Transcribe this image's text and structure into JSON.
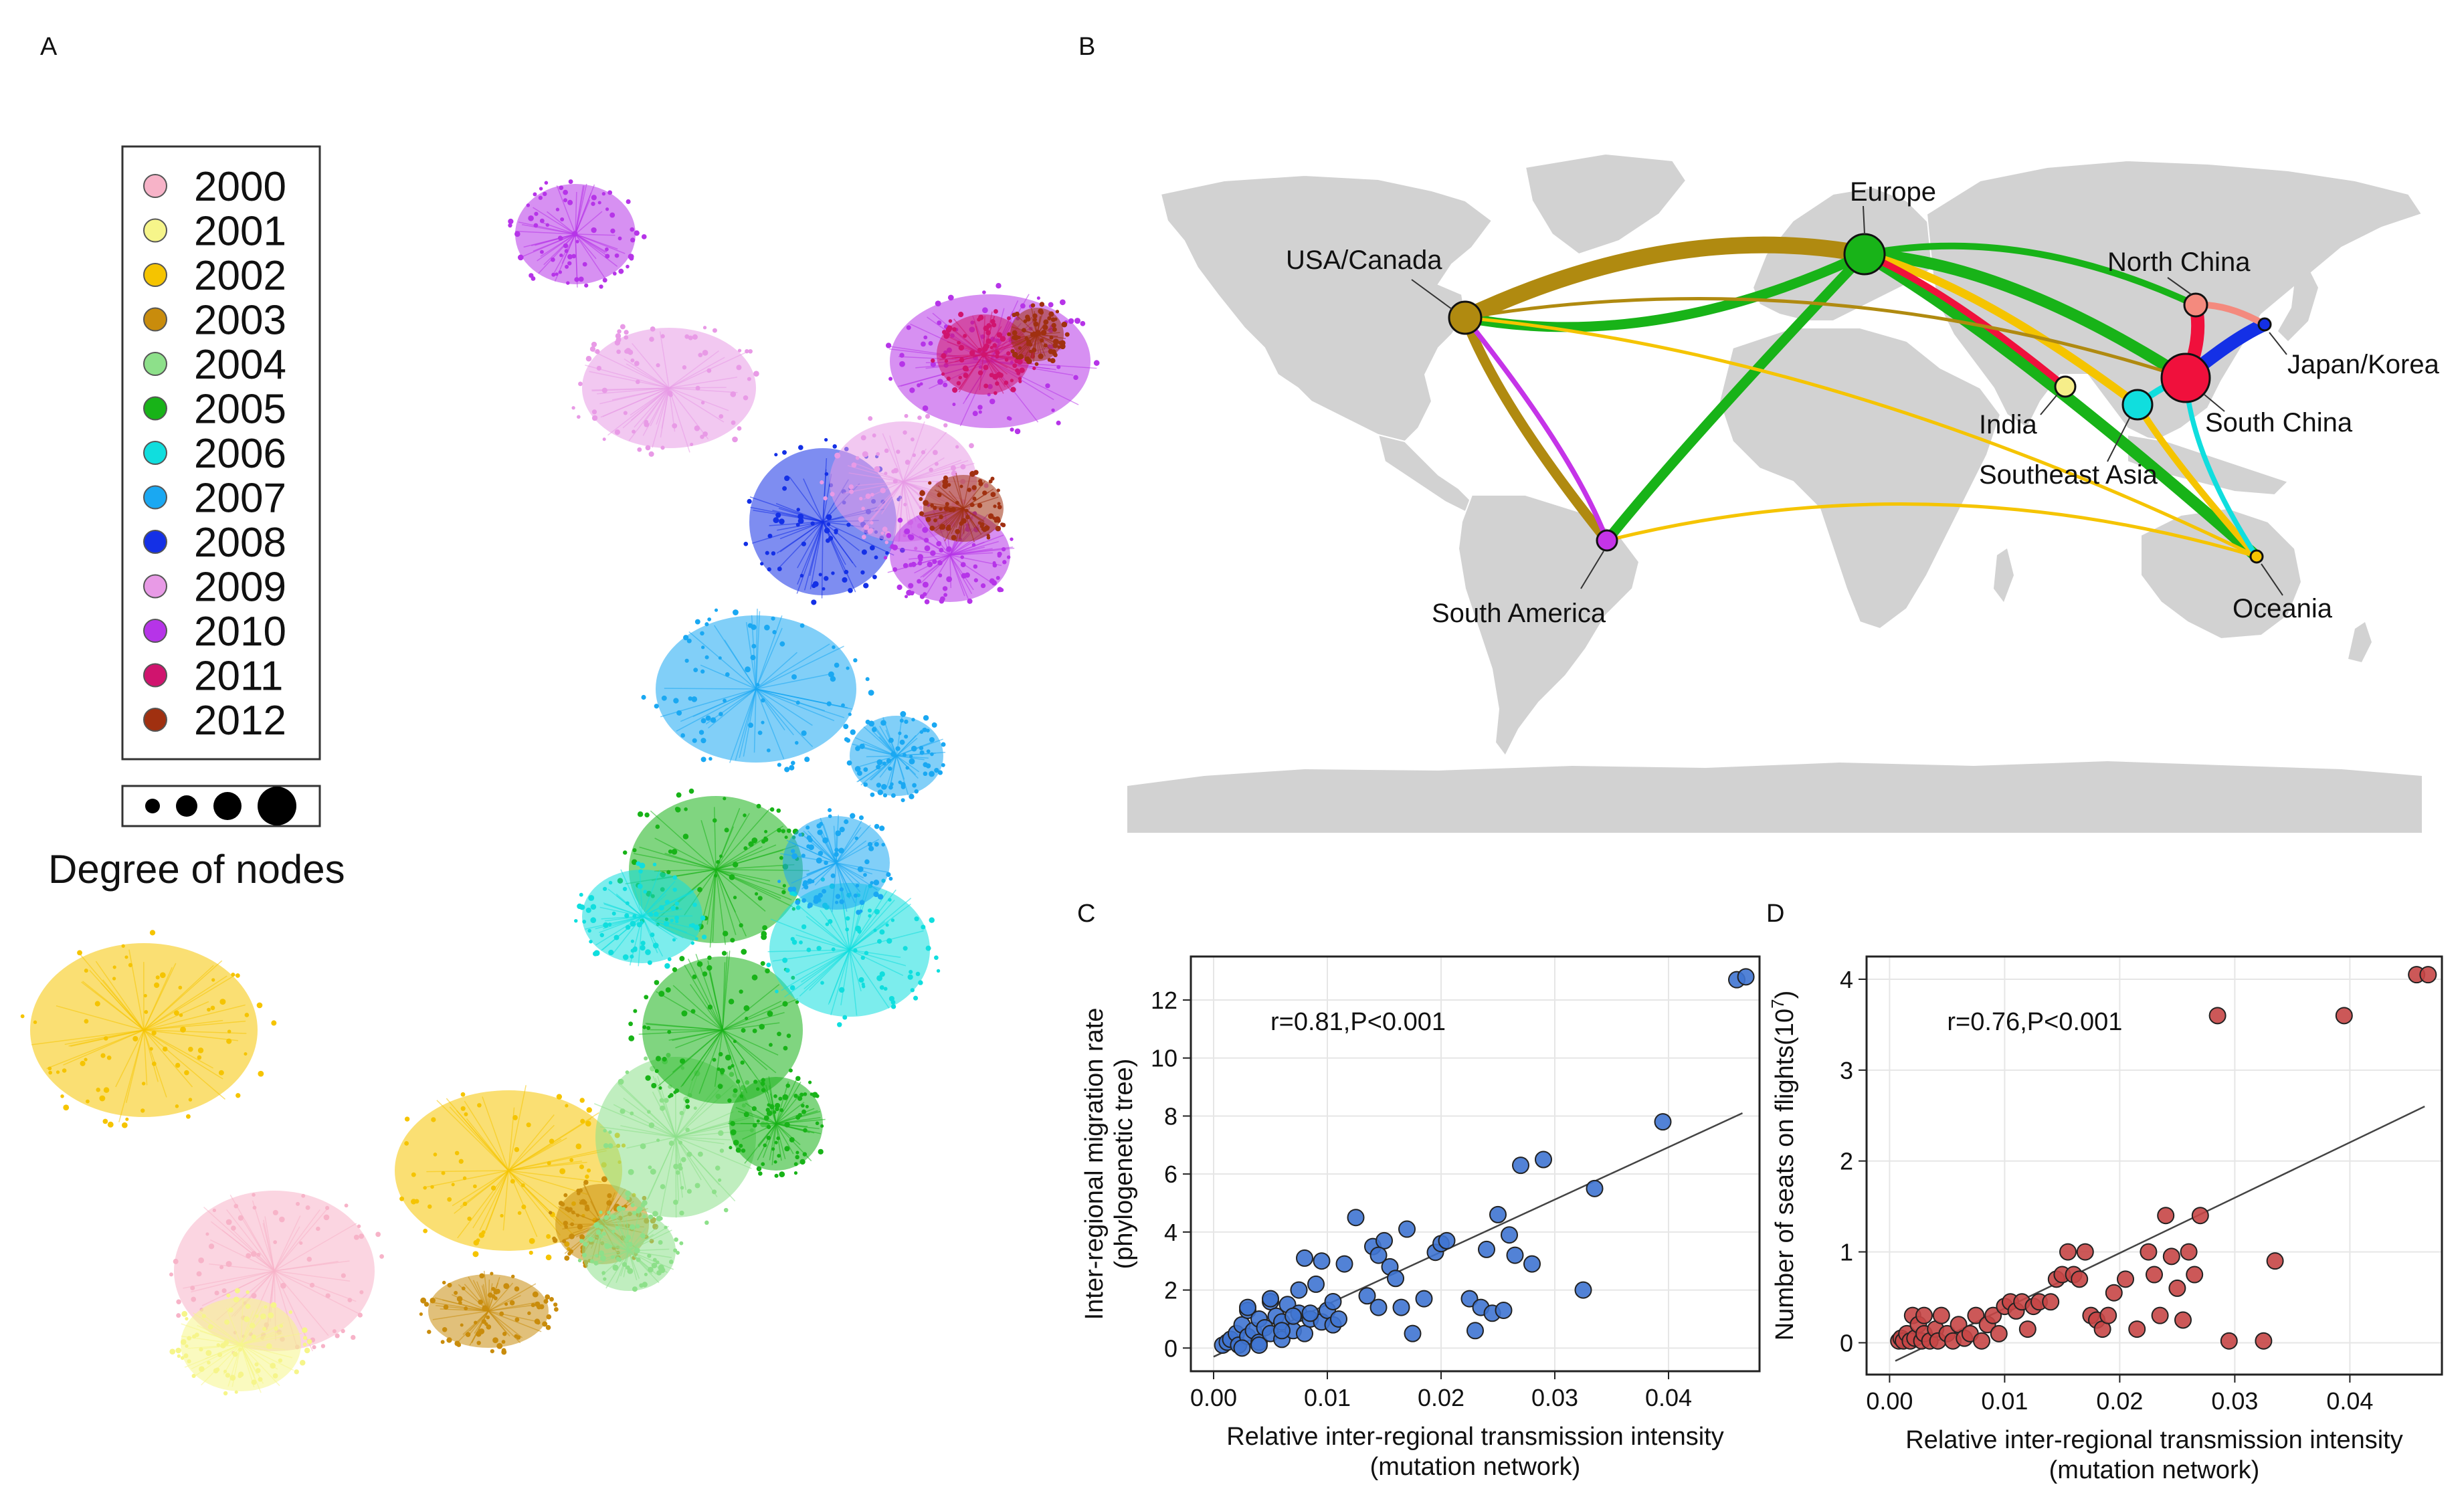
{
  "panels": {
    "A": "A",
    "B": "B",
    "C": "C",
    "D": "D"
  },
  "panel_a": {
    "legend_items": [
      {
        "year": "2000",
        "color": "#f7b3c8"
      },
      {
        "year": "2001",
        "color": "#f6f58a"
      },
      {
        "year": "2002",
        "color": "#f5c400"
      },
      {
        "year": "2003",
        "color": "#c98c0c"
      },
      {
        "year": "2004",
        "color": "#8de08a"
      },
      {
        "year": "2005",
        "color": "#18b318"
      },
      {
        "year": "2006",
        "color": "#10dede"
      },
      {
        "year": "2007",
        "color": "#1aa8f2"
      },
      {
        "year": "2008",
        "color": "#1430e6"
      },
      {
        "year": "2009",
        "color": "#e89ae6"
      },
      {
        "year": "2010",
        "color": "#b634e8"
      },
      {
        "year": "2011",
        "color": "#d0146e"
      },
      {
        "year": "2012",
        "color": "#a03010"
      }
    ],
    "degree_label": "Degree of nodes",
    "clusters": [
      {
        "year": "2000",
        "color": "#f7b3c8"
      },
      {
        "year": "2001",
        "color": "#f6f58a"
      },
      {
        "year": "2002",
        "color": "#f5c400"
      },
      {
        "year": "2003",
        "color": "#c98c0c"
      },
      {
        "year": "2004",
        "color": "#8de08a"
      },
      {
        "year": "2005",
        "color": "#18b318"
      },
      {
        "year": "2006",
        "color": "#10dede"
      },
      {
        "year": "2007",
        "color": "#1aa8f2"
      },
      {
        "year": "2008",
        "color": "#1430e6"
      },
      {
        "year": "2009",
        "color": "#e89ae6"
      },
      {
        "year": "2010",
        "color": "#b634e8"
      },
      {
        "year": "2011",
        "color": "#d0146e"
      },
      {
        "year": "2012",
        "color": "#a03010"
      }
    ]
  },
  "panel_b": {
    "regions": [
      {
        "name": "Europe",
        "color": "#18b318"
      },
      {
        "name": "USA/Canada",
        "color": "#b08a10"
      },
      {
        "name": "North China",
        "color": "#f48a7e"
      },
      {
        "name": "Japan/Korea",
        "color": "#1430e6"
      },
      {
        "name": "South China",
        "color": "#f0103c"
      },
      {
        "name": "India",
        "color": "#f6ee8a"
      },
      {
        "name": "Southeast Asia",
        "color": "#10dede"
      },
      {
        "name": "South America",
        "color": "#c534e8"
      },
      {
        "name": "Oceania",
        "color": "#f5c400"
      }
    ],
    "links": [
      {
        "from": "USA/Canada",
        "to": "Europe",
        "color": "#b08a10",
        "weight": 5
      },
      {
        "from": "Europe",
        "to": "USA/Canada",
        "color": "#18b318",
        "weight": 3
      },
      {
        "from": "USA/Canada",
        "to": "South America",
        "color": "#b08a10",
        "weight": 3
      },
      {
        "from": "South America",
        "to": "USA/Canada",
        "color": "#c534e8",
        "weight": 1.5
      },
      {
        "from": "Europe",
        "to": "South America",
        "color": "#18b318",
        "weight": 3
      },
      {
        "from": "Europe",
        "to": "South China",
        "color": "#18b318",
        "weight": 3.5
      },
      {
        "from": "Europe",
        "to": "Oceania",
        "color": "#18b318",
        "weight": 3.5
      },
      {
        "from": "Europe",
        "to": "North China",
        "color": "#18b318",
        "weight": 2
      },
      {
        "from": "Europe",
        "to": "Southeast Asia",
        "color": "#f5c400",
        "weight": 2.5
      },
      {
        "from": "Europe",
        "to": "India",
        "color": "#f0103c",
        "weight": 2
      },
      {
        "from": "USA/Canada",
        "to": "South China",
        "color": "#b08a10",
        "weight": 1
      },
      {
        "from": "USA/Canada",
        "to": "Oceania",
        "color": "#f5c400",
        "weight": 1
      },
      {
        "from": "South America",
        "to": "Oceania",
        "color": "#f5c400",
        "weight": 1
      },
      {
        "from": "Southeast Asia",
        "to": "Oceania",
        "color": "#f5c400",
        "weight": 2
      },
      {
        "from": "South China",
        "to": "Oceania",
        "color": "#10dede",
        "weight": 1.5
      },
      {
        "from": "South China",
        "to": "North China",
        "color": "#f0103c",
        "weight": 4
      },
      {
        "from": "South China",
        "to": "Japan/Korea",
        "color": "#1430e6",
        "weight": 4
      },
      {
        "from": "North China",
        "to": "Japan/Korea",
        "color": "#f48a7e",
        "weight": 2
      },
      {
        "from": "Southeast Asia",
        "to": "South China",
        "color": "#10dede",
        "weight": 2
      }
    ]
  },
  "chart_data": [
    {
      "panel": "C",
      "type": "scatter",
      "title": "",
      "stat_label": "r=0.81,P<0.001",
      "xlabel": "Relative inter-regional transmission intensity",
      "xlabel2": "(mutation network)",
      "ylabel": "Inter-regional migration rate",
      "ylabel2": "(phylogenetic tree)",
      "xlim": [
        -0.002,
        0.048
      ],
      "ylim": [
        -0.8,
        13.5
      ],
      "xticks": [
        0.0,
        0.01,
        0.02,
        0.03,
        0.04
      ],
      "xtick_labels": [
        "0.00",
        "0.01",
        "0.02",
        "0.03",
        "0.04"
      ],
      "yticks": [
        0,
        2,
        4,
        6,
        8,
        10,
        12
      ],
      "ytick_labels": [
        "0",
        "2",
        "4",
        "6",
        "8",
        "10",
        "12"
      ],
      "point_color": "#3f74d2",
      "fit_line": {
        "x": [
          0.0,
          0.0465
        ],
        "y": [
          -0.3,
          8.1
        ]
      },
      "x": [
        0.0008,
        0.0012,
        0.0015,
        0.002,
        0.0022,
        0.0025,
        0.003,
        0.003,
        0.0035,
        0.004,
        0.004,
        0.0045,
        0.005,
        0.005,
        0.0055,
        0.006,
        0.006,
        0.0065,
        0.007,
        0.0075,
        0.008,
        0.008,
        0.0085,
        0.009,
        0.0095,
        0.01,
        0.0105,
        0.011,
        0.003,
        0.005,
        0.0075,
        0.0085,
        0.0095,
        0.0105,
        0.0125,
        0.0135,
        0.014,
        0.0145,
        0.015,
        0.0155,
        0.016,
        0.0165,
        0.017,
        0.0175,
        0.0185,
        0.0195,
        0.02,
        0.0205,
        0.0225,
        0.023,
        0.0235,
        0.024,
        0.0245,
        0.025,
        0.0255,
        0.026,
        0.0265,
        0.027,
        0.028,
        0.029,
        0.0325,
        0.0335,
        0.0395,
        0.046,
        0.0468,
        0.0025,
        0.004,
        0.006,
        0.007,
        0.0115,
        0.0145
      ],
      "y": [
        0.1,
        0.2,
        0.3,
        0.5,
        0.1,
        0.8,
        0.4,
        1.3,
        0.6,
        1.0,
        0.2,
        0.7,
        1.6,
        0.5,
        1.1,
        0.3,
        0.9,
        1.5,
        0.6,
        1.2,
        0.5,
        3.1,
        1.0,
        2.2,
        0.9,
        1.3,
        0.8,
        1.0,
        1.4,
        1.7,
        2.0,
        1.2,
        3.0,
        1.6,
        4.5,
        1.8,
        3.5,
        1.4,
        3.7,
        2.8,
        2.4,
        1.4,
        4.1,
        0.5,
        1.7,
        3.3,
        3.6,
        3.7,
        1.7,
        0.6,
        1.4,
        3.4,
        1.2,
        4.6,
        1.3,
        3.9,
        3.2,
        6.3,
        2.9,
        6.5,
        2.0,
        5.5,
        7.8,
        12.7,
        12.8,
        0.0,
        0.1,
        0.6,
        1.1,
        2.9,
        3.2
      ]
    },
    {
      "panel": "D",
      "type": "scatter",
      "title": "",
      "stat_label": "r=0.76,P<0.001",
      "xlabel": "Relative inter-regional transmission intensity",
      "xlabel2": "(mutation network)",
      "ylabel": "Number of seats on flights(10",
      "ylabel_sup": "7",
      "ylabel_close": ")",
      "xlim": [
        -0.002,
        0.048
      ],
      "ylim": [
        -0.35,
        4.25
      ],
      "xticks": [
        0.0,
        0.01,
        0.02,
        0.03,
        0.04
      ],
      "xtick_labels": [
        "0.00",
        "0.01",
        "0.02",
        "0.03",
        "0.04"
      ],
      "yticks": [
        0,
        1,
        2,
        3,
        4
      ],
      "ytick_labels": [
        "0",
        "1",
        "2",
        "3",
        "4"
      ],
      "point_color": "#c74646",
      "fit_line": {
        "x": [
          0.0005,
          0.0465
        ],
        "y": [
          -0.2,
          2.6
        ]
      },
      "x": [
        0.0008,
        0.001,
        0.0012,
        0.0015,
        0.0018,
        0.002,
        0.0022,
        0.0025,
        0.0028,
        0.003,
        0.003,
        0.0035,
        0.004,
        0.0042,
        0.0045,
        0.005,
        0.0055,
        0.006,
        0.0065,
        0.007,
        0.0075,
        0.008,
        0.0085,
        0.009,
        0.0095,
        0.01,
        0.0105,
        0.011,
        0.0115,
        0.012,
        0.0125,
        0.013,
        0.014,
        0.0145,
        0.015,
        0.0155,
        0.016,
        0.0165,
        0.017,
        0.0175,
        0.018,
        0.0185,
        0.019,
        0.0195,
        0.0205,
        0.0215,
        0.0225,
        0.023,
        0.0235,
        0.024,
        0.0245,
        0.025,
        0.0255,
        0.026,
        0.0265,
        0.027,
        0.0285,
        0.0295,
        0.0325,
        0.0335,
        0.0395,
        0.0458,
        0.0468
      ],
      "y": [
        0.02,
        0.05,
        0.02,
        0.1,
        0.02,
        0.3,
        0.05,
        0.2,
        0.02,
        0.1,
        0.3,
        0.02,
        0.15,
        0.02,
        0.3,
        0.1,
        0.02,
        0.2,
        0.05,
        0.1,
        0.3,
        0.02,
        0.2,
        0.3,
        0.1,
        0.4,
        0.45,
        0.35,
        0.45,
        0.15,
        0.4,
        0.45,
        0.45,
        0.7,
        0.75,
        1.0,
        0.75,
        0.7,
        1.0,
        0.3,
        0.25,
        0.15,
        0.3,
        0.55,
        0.7,
        0.15,
        1.0,
        0.75,
        0.3,
        1.4,
        0.95,
        0.6,
        0.25,
        1.0,
        0.75,
        1.4,
        3.6,
        0.02,
        0.02,
        0.9,
        3.6,
        4.05,
        4.05
      ]
    }
  ]
}
